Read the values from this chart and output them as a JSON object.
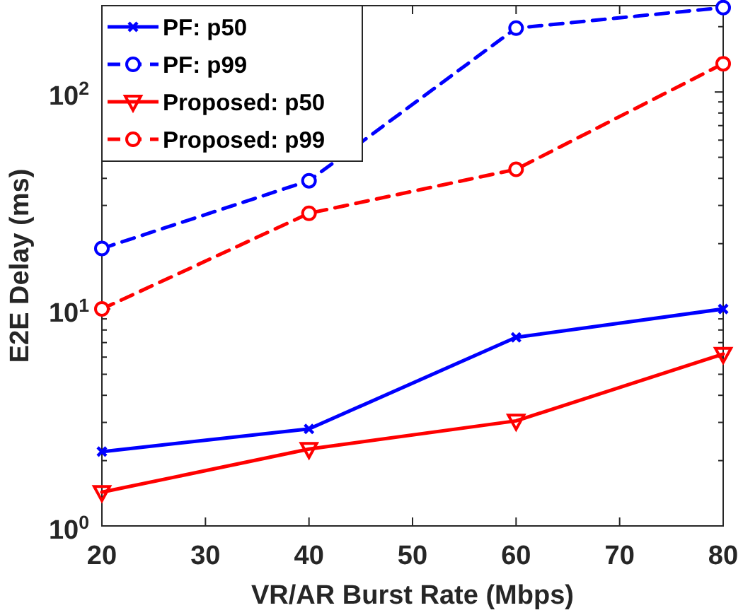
{
  "chart_data": {
    "type": "line",
    "xlabel": "VR/AR Burst Rate (Mbps)",
    "ylabel": "E2E Delay (ms)",
    "x": [
      20,
      40,
      60,
      80
    ],
    "log": "y",
    "xlim": [
      20,
      80
    ],
    "xticks": [
      20,
      30,
      40,
      50,
      60,
      70,
      80
    ],
    "ylim": [
      1,
      250
    ],
    "yticks": [
      {
        "value": 1,
        "label": "10$^{0}$"
      },
      {
        "value": 2,
        "label": null
      },
      {
        "value": 3,
        "label": null
      },
      {
        "value": 4,
        "label": null
      },
      {
        "value": 5,
        "label": null
      },
      {
        "value": 6,
        "label": null
      },
      {
        "value": 7,
        "label": null
      },
      {
        "value": 8,
        "label": null
      },
      {
        "value": 9,
        "label": null
      },
      {
        "value": 10,
        "label": "10$^{1}$"
      },
      {
        "value": 20,
        "label": null
      },
      {
        "value": 30,
        "label": null
      },
      {
        "value": 40,
        "label": null
      },
      {
        "value": 50,
        "label": null
      },
      {
        "value": 60,
        "label": null
      },
      {
        "value": 70,
        "label": null
      },
      {
        "value": 80,
        "label": null
      },
      {
        "value": 90,
        "label": null
      },
      {
        "value": 100,
        "label": "10$^{2}$"
      },
      {
        "value": 200,
        "label": null
      }
    ],
    "grid": false,
    "legend": "top left",
    "series": [
      {
        "name": "PF: p50",
        "color": "#0000ff",
        "marker": "cross",
        "line_style": "solid",
        "values": [
          2.2,
          2.8,
          7.4,
          10
        ]
      },
      {
        "name": "PF: p99",
        "color": "#0000ff",
        "marker": "circle",
        "line_style": "dashed",
        "values": [
          19,
          39,
          197,
          245
        ]
      },
      {
        "name": "Proposed: p50",
        "color": "#ff0000",
        "marker": "triangle",
        "line_style": "solid",
        "values": [
          1.43,
          2.26,
          3.05,
          6.2
        ]
      },
      {
        "name": "Proposed: p99",
        "color": "#ff0000",
        "marker": "circle",
        "line_style": "dashed",
        "values": [
          10,
          27.6,
          44,
          135
        ]
      }
    ]
  }
}
